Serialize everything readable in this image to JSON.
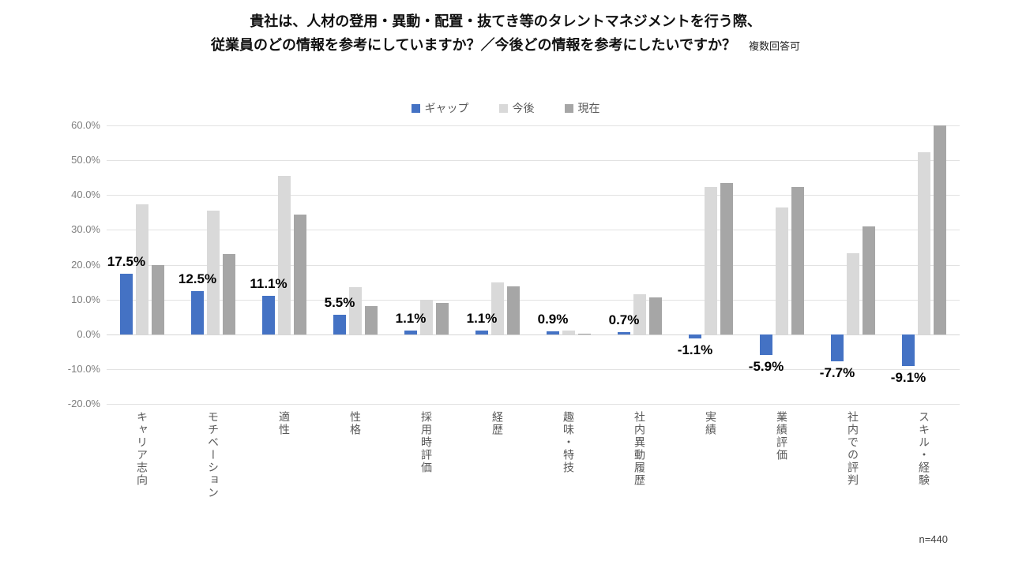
{
  "title": {
    "line1": "貴社は、人材の登用・異動・配置・抜てき等のタレントマネジメントを行う際、",
    "line2": "従業員のどの情報を参考にしていますか？／今後どの情報を参考にしたいですか？",
    "note": "複数回答可"
  },
  "footnote": "n=440",
  "colors": {
    "gap": "#4472C4",
    "future": "#D9D9D9",
    "current": "#A6A6A6",
    "gridline": "#E2E2E2",
    "axis_text": "#7F7F7F",
    "category_text": "#595959"
  },
  "chart_data": {
    "type": "bar",
    "title": "貴社は、人材の登用・異動・配置・抜てき等のタレントマネジメントを行う際、従業員のどの情報を参考にしていますか？／今後どの情報を参考にしたいですか？",
    "subtitle": "複数回答可",
    "sample_size": "n=440",
    "categories": [
      "キャリア志向",
      "モチベーション",
      "適性",
      "性格",
      "採用時評価",
      "経歴",
      "趣味・特技",
      "社内異動履歴",
      "実績",
      "業績評価",
      "社内での評判",
      "スキル・経験"
    ],
    "series": [
      {
        "name": "ギャップ",
        "color": "#4472C4",
        "values": [
          17.5,
          12.5,
          11.1,
          5.5,
          1.1,
          1.1,
          0.9,
          0.7,
          -1.1,
          -5.9,
          -7.7,
          -9.1
        ]
      },
      {
        "name": "今後",
        "color": "#D9D9D9",
        "values": [
          37.3,
          35.5,
          45.5,
          13.6,
          10.0,
          14.8,
          1.1,
          11.4,
          42.3,
          36.4,
          23.2,
          52.3
        ]
      },
      {
        "name": "現在",
        "color": "#A6A6A6",
        "values": [
          19.8,
          23.0,
          34.4,
          8.1,
          8.9,
          13.7,
          0.2,
          10.7,
          43.4,
          42.3,
          30.9,
          61.4
        ]
      }
    ],
    "data_labels": [
      "17.5%",
      "12.5%",
      "11.1%",
      "5.5%",
      "1.1%",
      "1.1%",
      "0.9%",
      "0.7%",
      "-1.1%",
      "-5.9%",
      "-7.7%",
      "-9.1%"
    ],
    "data_label_series": "ギャップ",
    "y_axis": {
      "min": -20,
      "max": 60,
      "step": 10,
      "ticks": [
        "60.0%",
        "50.0%",
        "40.0%",
        "30.0%",
        "20.0%",
        "10.0%",
        "0.0%",
        "-10.0%",
        "-20.0%"
      ]
    },
    "grid": true,
    "legend_position": "top-center"
  }
}
